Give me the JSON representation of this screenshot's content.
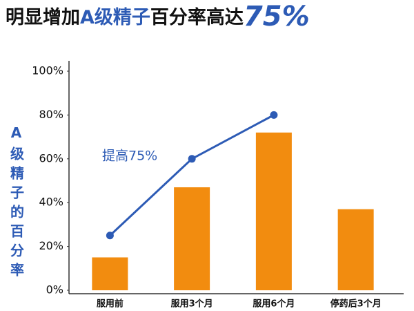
{
  "chart_data": {
    "type": "bar",
    "title_parts": [
      "明显增加",
      "A级精子",
      "百分率高达",
      "75%"
    ],
    "y_label": "A级精子的百分率",
    "annotation": "提高75%",
    "categories": [
      "服用前",
      "服用3个月",
      "服用6个月",
      "停药后3个月"
    ],
    "series": [
      {
        "type": "bar",
        "color": "#f28c0f",
        "values": [
          15,
          47,
          72,
          37
        ]
      },
      {
        "type": "line",
        "color": "#2d5bb5",
        "values": [
          25,
          60,
          80,
          null
        ]
      }
    ],
    "ylim": [
      0,
      100
    ],
    "yticks": [
      {
        "value": 0,
        "label": "0%"
      },
      {
        "value": 20,
        "label": "20%"
      },
      {
        "value": 40,
        "label": "40%"
      },
      {
        "value": 60,
        "label": "60%"
      },
      {
        "value": 80,
        "label": "80%"
      },
      {
        "value": 100,
        "label": "100%"
      }
    ],
    "title_colors": [
      "#111111",
      "#2d5bb5",
      "#111111",
      "#2d5bb5"
    ]
  }
}
